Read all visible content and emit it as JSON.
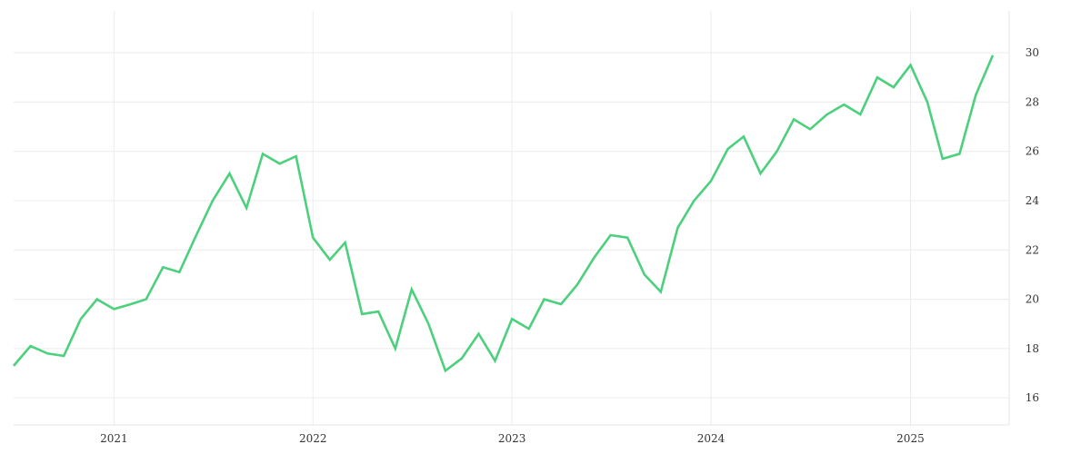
{
  "chart_data": {
    "type": "line",
    "title": "",
    "xlabel": "",
    "ylabel": "",
    "x_ticks": [
      "2021",
      "2022",
      "2023",
      "2024",
      "2025"
    ],
    "y_ticks": [
      16,
      18,
      20,
      22,
      24,
      26,
      28,
      30
    ],
    "xlim": [
      "2020-07-01",
      "2025-07-01"
    ],
    "ylim": [
      14.9,
      31.7
    ],
    "grid": true,
    "y_axis_position": "right",
    "series": [
      {
        "color": "#4cd07d",
        "points": [
          [
            "2020-07-01",
            17.3
          ],
          [
            "2020-08-01",
            18.1
          ],
          [
            "2020-09-01",
            17.8
          ],
          [
            "2020-10-01",
            17.7
          ],
          [
            "2020-11-01",
            19.2
          ],
          [
            "2020-12-01",
            20.0
          ],
          [
            "2021-01-01",
            19.6
          ],
          [
            "2021-02-01",
            19.8
          ],
          [
            "2021-03-01",
            20.0
          ],
          [
            "2021-04-01",
            21.3
          ],
          [
            "2021-05-01",
            21.1
          ],
          [
            "2021-06-01",
            22.6
          ],
          [
            "2021-07-01",
            24.0
          ],
          [
            "2021-08-01",
            25.1
          ],
          [
            "2021-09-01",
            23.7
          ],
          [
            "2021-10-01",
            25.9
          ],
          [
            "2021-11-01",
            25.5
          ],
          [
            "2021-12-01",
            25.8
          ],
          [
            "2022-01-01",
            22.5
          ],
          [
            "2022-02-01",
            21.6
          ],
          [
            "2022-03-01",
            22.3
          ],
          [
            "2022-04-01",
            19.4
          ],
          [
            "2022-05-01",
            19.5
          ],
          [
            "2022-06-01",
            18.0
          ],
          [
            "2022-07-01",
            20.4
          ],
          [
            "2022-08-01",
            19.0
          ],
          [
            "2022-09-01",
            17.1
          ],
          [
            "2022-10-01",
            17.6
          ],
          [
            "2022-11-01",
            18.6
          ],
          [
            "2022-12-01",
            17.5
          ],
          [
            "2023-01-01",
            19.2
          ],
          [
            "2023-02-01",
            18.8
          ],
          [
            "2023-03-01",
            20.0
          ],
          [
            "2023-04-01",
            19.8
          ],
          [
            "2023-05-01",
            20.6
          ],
          [
            "2023-06-01",
            21.7
          ],
          [
            "2023-07-01",
            22.6
          ],
          [
            "2023-08-01",
            22.5
          ],
          [
            "2023-09-01",
            21.0
          ],
          [
            "2023-10-01",
            20.3
          ],
          [
            "2023-11-01",
            22.9
          ],
          [
            "2023-12-01",
            24.0
          ],
          [
            "2024-01-01",
            24.8
          ],
          [
            "2024-02-01",
            26.1
          ],
          [
            "2024-03-01",
            26.6
          ],
          [
            "2024-04-01",
            25.1
          ],
          [
            "2024-05-01",
            26.0
          ],
          [
            "2024-06-01",
            27.3
          ],
          [
            "2024-07-01",
            26.9
          ],
          [
            "2024-08-01",
            27.5
          ],
          [
            "2024-09-01",
            27.9
          ],
          [
            "2024-10-01",
            27.5
          ],
          [
            "2024-11-01",
            29.0
          ],
          [
            "2024-12-01",
            28.6
          ],
          [
            "2025-01-01",
            29.5
          ],
          [
            "2025-02-01",
            28.0
          ],
          [
            "2025-03-01",
            25.7
          ],
          [
            "2025-04-01",
            25.9
          ],
          [
            "2025-05-01",
            28.3
          ],
          [
            "2025-06-01",
            29.9
          ]
        ]
      }
    ]
  }
}
